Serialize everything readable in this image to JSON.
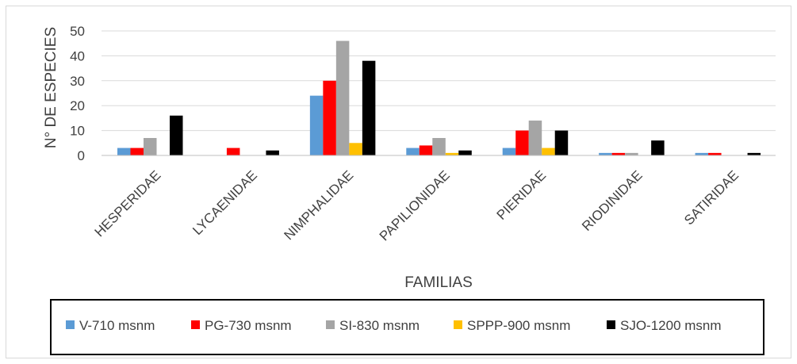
{
  "chart_data": {
    "type": "bar",
    "title": "",
    "xlabel": "FAMILIAS",
    "ylabel": "N° DE ESPECIES",
    "ylim": [
      0,
      50
    ],
    "yticks": [
      0,
      10,
      20,
      30,
      40,
      50
    ],
    "grid": true,
    "legend_position": "bottom",
    "categories": [
      "HESPERIDAE",
      "LYCAENIDAE",
      "NIMPHALIDAE",
      "PAPILIONIDAE",
      "PIERIDAE",
      "RIODINIDAE",
      "SATIRIDAE"
    ],
    "series": [
      {
        "name": "V-710 msnm",
        "color": "#5b9bd5",
        "values": [
          3,
          0,
          24,
          3,
          3,
          1,
          1
        ]
      },
      {
        "name": "PG-730 msnm",
        "color": "#ff0000",
        "values": [
          3,
          3,
          30,
          4,
          10,
          1,
          1
        ]
      },
      {
        "name": "SI-830 msnm",
        "color": "#a5a5a5",
        "values": [
          7,
          0,
          46,
          7,
          14,
          1,
          0
        ]
      },
      {
        "name": "SPPP-900 msnm",
        "color": "#ffc000",
        "values": [
          0,
          0,
          5,
          1,
          3,
          0,
          0
        ]
      },
      {
        "name": "SJO-1200 msnm",
        "color": "#000000",
        "values": [
          16,
          2,
          38,
          2,
          10,
          6,
          1
        ]
      }
    ]
  }
}
